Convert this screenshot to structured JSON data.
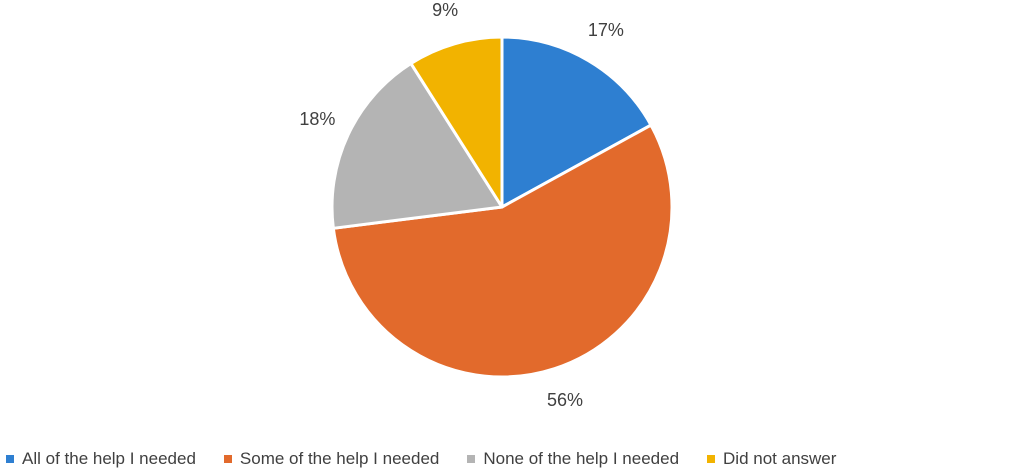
{
  "chart_data": {
    "type": "pie",
    "title": "",
    "legend_position": "bottom",
    "slices": [
      {
        "name": "All of the help I needed",
        "value": 17,
        "label": "17%",
        "color": "#2e7fd1"
      },
      {
        "name": "Some of the help I needed",
        "value": 56,
        "label": "56%",
        "color": "#e26a2c"
      },
      {
        "name": "None of the help I needed",
        "value": 18,
        "label": "18%",
        "color": "#b4b4b4"
      },
      {
        "name": "Did not answer",
        "value": 9,
        "label": "9%",
        "color": "#f2b300"
      }
    ]
  }
}
